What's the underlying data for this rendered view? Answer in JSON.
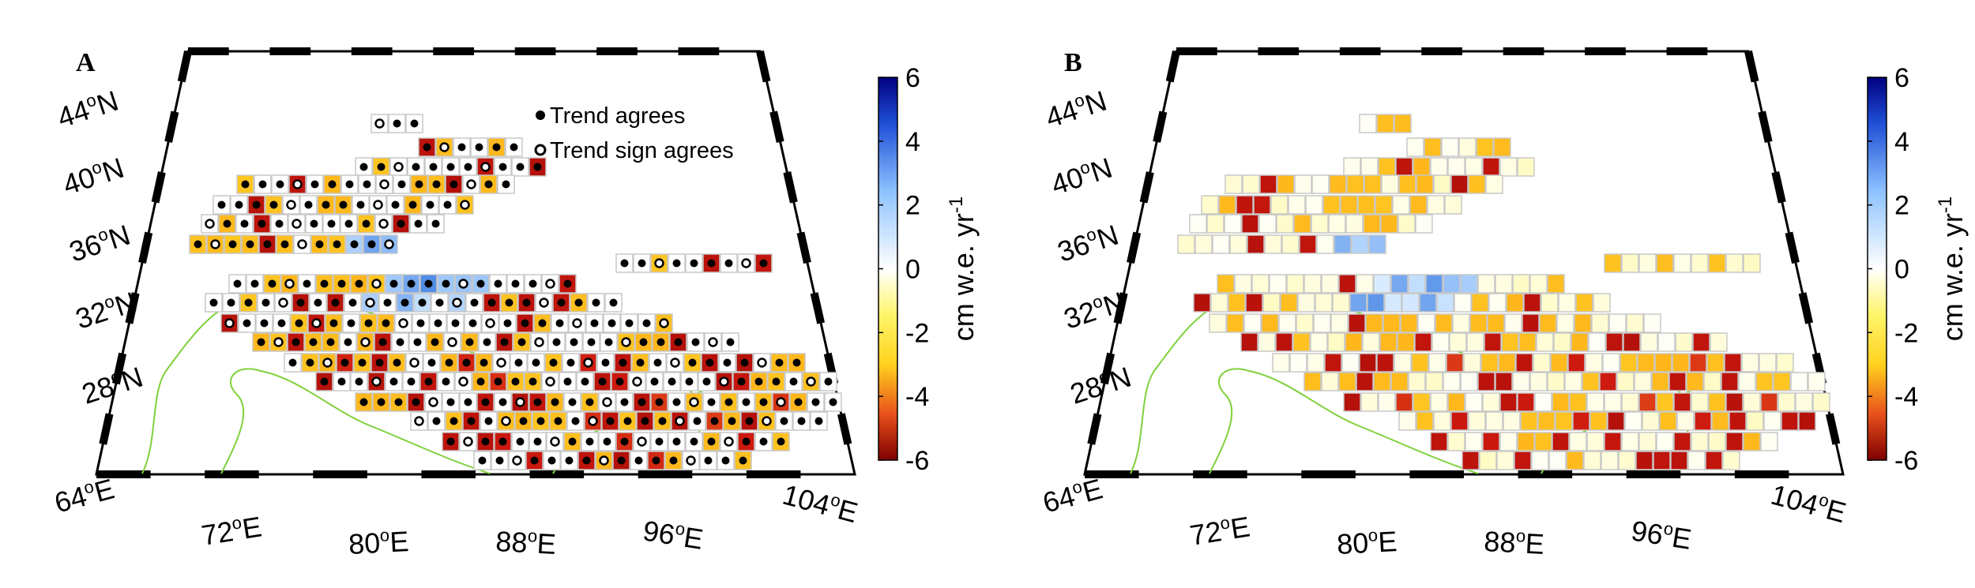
{
  "panels": [
    {
      "letter": "A",
      "legend": {
        "agrees": "Trend agrees",
        "sign_agrees": "Trend sign agrees"
      }
    },
    {
      "letter": "B"
    }
  ],
  "lat_labels": [
    {
      "deg": "44",
      "o": "o",
      "h": "N"
    },
    {
      "deg": "40",
      "o": "o",
      "h": "N"
    },
    {
      "deg": "36",
      "o": "o",
      "h": "N"
    },
    {
      "deg": "32",
      "o": "o",
      "h": "N"
    },
    {
      "deg": "28",
      "o": "o",
      "h": "N"
    }
  ],
  "lon_labels": [
    {
      "deg": "64",
      "o": "o",
      "h": "E"
    },
    {
      "deg": "72",
      "o": "o",
      "h": "E"
    },
    {
      "deg": "80",
      "o": "o",
      "h": "E"
    },
    {
      "deg": "88",
      "o": "o",
      "h": "E"
    },
    {
      "deg": "96",
      "o": "o",
      "h": "E"
    },
    {
      "deg": "104",
      "o": "o",
      "h": "E"
    }
  ],
  "colorbar": {
    "ticks": [
      "6",
      "4",
      "2",
      "0",
      "-2",
      "-4",
      "-6"
    ],
    "label_main": "cm w.e. yr",
    "label_exp": "-1",
    "range": [
      -6,
      6
    ]
  },
  "colors": {
    "boundary": "#7fd13b",
    "frame": "#000000",
    "cell_edge": "#c8c8c8"
  }
}
